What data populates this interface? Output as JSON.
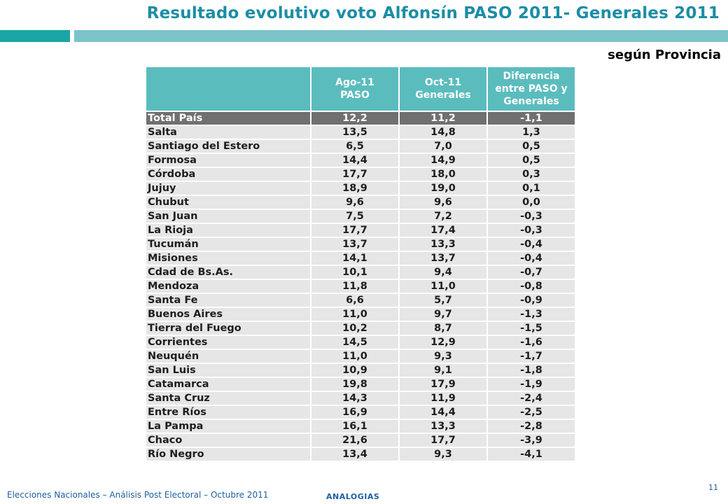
{
  "header": {
    "title": "Resultado evolutivo voto Alfonsín PASO 2011- Generales 2011",
    "subtitle": "según Provincia"
  },
  "table": {
    "columns": [
      "",
      "Ago-11\nPASO",
      "Oct-11\nGenerales",
      "Diferencia\nentre PASO y\nGenerales"
    ],
    "total": [
      "Total País",
      "12,2",
      "11,2",
      "-1,1"
    ],
    "rows": [
      [
        "Salta",
        "13,5",
        "14,8",
        "1,3"
      ],
      [
        "Santiago del Estero",
        "6,5",
        "7,0",
        "0,5"
      ],
      [
        "Formosa",
        "14,4",
        "14,9",
        "0,5"
      ],
      [
        "Córdoba",
        "17,7",
        "18,0",
        "0,3"
      ],
      [
        "Jujuy",
        "18,9",
        "19,0",
        "0,1"
      ],
      [
        "Chubut",
        "9,6",
        "9,6",
        "0,0"
      ],
      [
        "San Juan",
        "7,5",
        "7,2",
        "-0,3"
      ],
      [
        "La Rioja",
        "17,7",
        "17,4",
        "-0,3"
      ],
      [
        "Tucumán",
        "13,7",
        "13,3",
        "-0,4"
      ],
      [
        "Misiones",
        "14,1",
        "13,7",
        "-0,4"
      ],
      [
        "Cdad de Bs.As.",
        "10,1",
        "9,4",
        "-0,7"
      ],
      [
        "Mendoza",
        "11,8",
        "11,0",
        "-0,8"
      ],
      [
        "Santa Fe",
        "6,6",
        "5,7",
        "-0,9"
      ],
      [
        "Buenos Aires",
        "11,0",
        "9,7",
        "-1,3"
      ],
      [
        "Tierra del Fuego",
        "10,2",
        "8,7",
        "-1,5"
      ],
      [
        "Corrientes",
        "14,5",
        "12,9",
        "-1,6"
      ],
      [
        "Neuquén",
        "11,0",
        "9,3",
        "-1,7"
      ],
      [
        "San Luis",
        "10,9",
        "9,1",
        "-1,8"
      ],
      [
        "Catamarca",
        "19,8",
        "17,9",
        "-1,9"
      ],
      [
        "Santa Cruz",
        "14,3",
        "11,9",
        "-2,4"
      ],
      [
        "Entre Ríos",
        "16,9",
        "14,4",
        "-2,5"
      ],
      [
        "La Pampa",
        "16,1",
        "13,3",
        "-2,8"
      ],
      [
        "Chaco",
        "21,6",
        "17,7",
        "-3,9"
      ],
      [
        "Río Negro",
        "13,4",
        "9,3",
        "-4,1"
      ]
    ]
  },
  "footer": {
    "caption": "Elecciones Nacionales – Análisis Post Electoral – Octubre 2011",
    "brand": "ANALOGIAS",
    "page_number": "11"
  },
  "colors": {
    "title": "#1c8da6",
    "bar_dark": "#1aa6a6",
    "bar_light": "#7cc4c8",
    "header_cell": "#5bbcbe",
    "total_row": "#707070",
    "data_row": "#e6e6e6"
  }
}
